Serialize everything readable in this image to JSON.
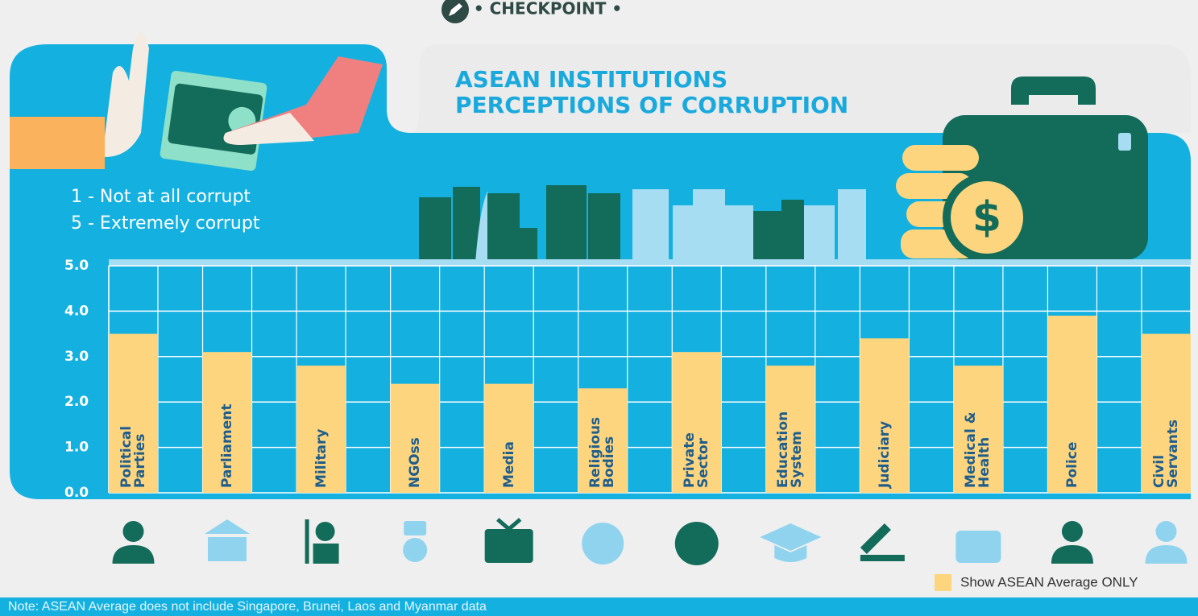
{
  "header": "• CHECKPOINT •",
  "chart_data": {
    "type": "bar",
    "title_lines": [
      "ASEAN INSTITUTIONS",
      "PERCEPTIONS OF CORRUPTION"
    ],
    "annotations": [
      "1 - Not at all corrupt",
      "5 - Extremely corrupt"
    ],
    "categories": [
      "Political Parties",
      "Parliament",
      "Military",
      "NGOss",
      "Media",
      "Religious Bodies",
      "Private Sector",
      "Education System",
      "Judiciary",
      "Medical & Health",
      "Police",
      "Civil Servants"
    ],
    "series": [
      {
        "name": "Show ASEAN Average ONLY",
        "color": "#fdd57e",
        "values": [
          3.5,
          3.1,
          2.8,
          2.4,
          2.4,
          2.3,
          3.1,
          2.8,
          3.4,
          2.8,
          3.9,
          3.5
        ]
      }
    ],
    "ylim": [
      0,
      5
    ],
    "yticks": [
      {
        "value": 0,
        "label": "0.0"
      },
      {
        "value": 1,
        "label": "1.0"
      },
      {
        "value": 2,
        "label": "2.0"
      },
      {
        "value": 3,
        "label": "3.0"
      },
      {
        "value": 4,
        "label": "4.0"
      },
      {
        "value": 5,
        "label": "5.0"
      }
    ],
    "grid": true,
    "note": "Note: ASEAN Average does not include Singapore, Brunei, Laos and Myanmar data"
  }
}
